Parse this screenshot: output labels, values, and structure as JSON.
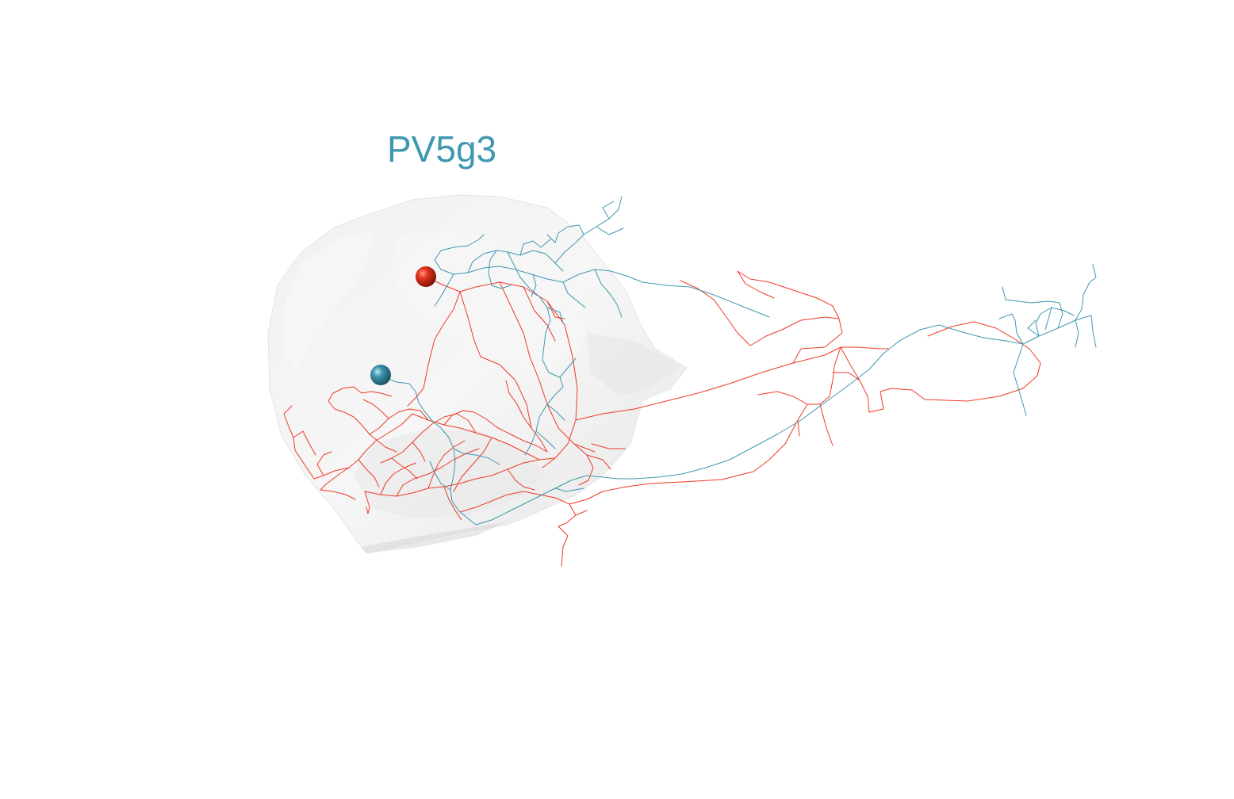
{
  "title": {
    "text": "PV5g3",
    "color": "#3f97b0"
  },
  "neurons": [
    {
      "id": "neuron-red",
      "color": "#ee3a27"
    },
    {
      "id": "neuron-blue",
      "color": "#3f97b0"
    }
  ],
  "neuropil": {
    "color": "#e2e2e2"
  }
}
